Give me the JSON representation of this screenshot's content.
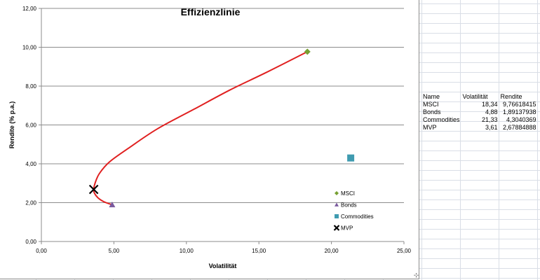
{
  "sheet": {
    "table": {
      "headers": [
        "Name",
        "Volatilität",
        "Rendite"
      ],
      "rows": [
        [
          "MSCI",
          "18,34",
          "9,76618415"
        ],
        [
          "Bonds",
          "4,88",
          "1,89137938"
        ],
        [
          "Commodities",
          "21,33",
          "4,3040369"
        ],
        [
          "MVP",
          "3,61",
          "2,67884888"
        ]
      ]
    }
  },
  "chart_data": {
    "type": "scatter",
    "title": "Effizienzlinie",
    "xlabel": "Volatilität",
    "ylabel": "Rendite (% p.a.)",
    "xlim": [
      0,
      25
    ],
    "ylim": [
      0,
      12
    ],
    "x_ticks": [
      "0,00",
      "5,00",
      "10,00",
      "15,00",
      "20,00",
      "25,00"
    ],
    "y_ticks": [
      "0,00",
      "2,00",
      "4,00",
      "6,00",
      "8,00",
      "10,00",
      "12,00"
    ],
    "grid": "horizontal",
    "legend_position": "bottom-right",
    "series": [
      {
        "name": "MSCI",
        "marker": "diamond",
        "color": "#77a032",
        "points": [
          [
            18.34,
            9.77
          ]
        ]
      },
      {
        "name": "Bonds",
        "marker": "triangle",
        "color": "#7a5a9e",
        "points": [
          [
            4.88,
            1.89
          ]
        ]
      },
      {
        "name": "Commodities",
        "marker": "square",
        "color": "#3f9bb0",
        "points": [
          [
            21.33,
            4.3
          ]
        ]
      },
      {
        "name": "MVP",
        "marker": "x",
        "color": "#000000",
        "points": [
          [
            3.61,
            2.68
          ]
        ]
      }
    ],
    "curve": {
      "color": "#e02020",
      "points": [
        [
          4.88,
          1.89
        ],
        [
          4.3,
          2.05
        ],
        [
          3.9,
          2.25
        ],
        [
          3.65,
          2.5
        ],
        [
          3.61,
          2.68
        ],
        [
          3.7,
          3.0
        ],
        [
          4.0,
          3.5
        ],
        [
          4.7,
          4.1
        ],
        [
          6.0,
          4.8
        ],
        [
          8.0,
          5.8
        ],
        [
          10.5,
          6.8
        ],
        [
          13.0,
          7.8
        ],
        [
          15.5,
          8.7
        ],
        [
          18.34,
          9.77
        ]
      ]
    }
  }
}
